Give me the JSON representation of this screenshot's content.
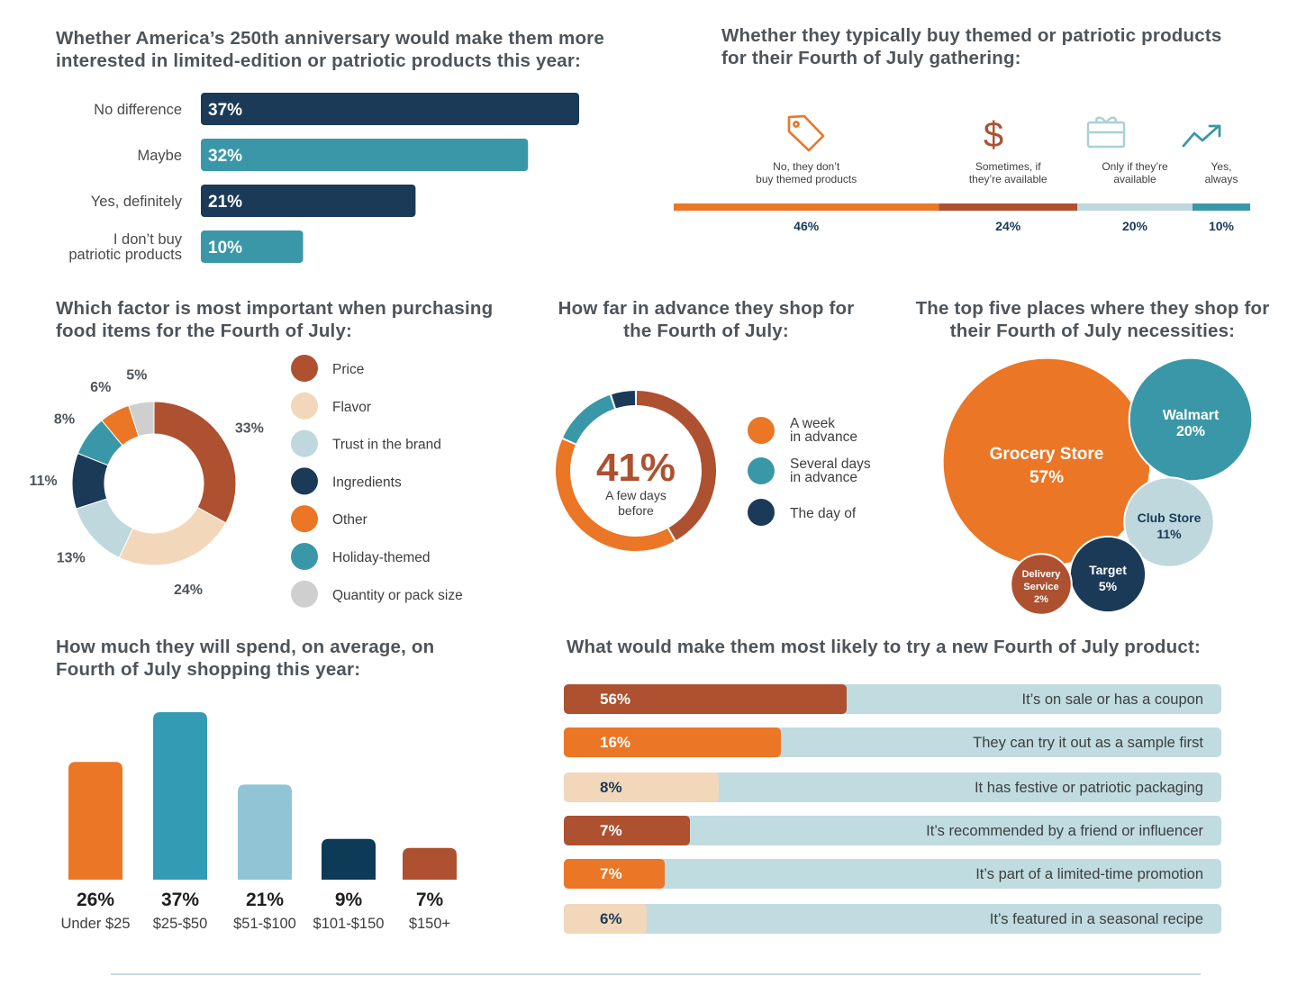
{
  "colors": {
    "navy": "#1a3a58",
    "teal": "#3a97a8",
    "orange": "#ea7626",
    "rust": "#ad5130",
    "peach": "#f2d7bb",
    "lightblue": "#bfd8dd",
    "gray": "#cfcfcf",
    "barteal": "#349bb4",
    "barlight": "#91c4d4",
    "barnavy": "#0c3a57",
    "track": "#c0dce0"
  },
  "titles": {
    "anniversary": "Whether America’s 250th anniversary would make them more interested in limited-edition or patriotic products this year:",
    "themed": "Whether they typically buy themed or patriotic products for their Fourth of July gathering:",
    "factor": "Which factor is most important when purchasing food items for the Fourth of July:",
    "advance": "How far in advance they shop for the Fourth of July:",
    "places": "The top five places where they shop for their Fourth of July necessities:",
    "spend": "How much they will spend, on average, on Fourth of July shopping this year:",
    "try_new": "What would make them most likely to try a new Fourth of July product:"
  },
  "chart_data": [
    {
      "id": "anniversary",
      "type": "bar",
      "orientation": "horizontal",
      "categories": [
        "No difference",
        "Maybe",
        "Yes, definitely",
        "I don’t buy patriotic products"
      ],
      "values": [
        37,
        32,
        21,
        10
      ],
      "labels": [
        "37%",
        "32%",
        "21%",
        "10%"
      ],
      "colors": [
        "#1a3a58",
        "#3a97a8",
        "#1a3a58",
        "#3a97a8"
      ],
      "xlim": [
        0,
        37
      ]
    },
    {
      "id": "themed",
      "type": "bar",
      "orientation": "stacked-horizontal",
      "categories": [
        "No, they don’t buy themed products",
        "Sometimes, if they’re available",
        "Only if they’re available",
        "Yes, always"
      ],
      "values": [
        46,
        24,
        20,
        10
      ],
      "labels": [
        "46%",
        "24%",
        "20%",
        "10%"
      ],
      "icons": [
        "tag-icon",
        "dollar-icon",
        "gift-card-icon",
        "trend-up-icon"
      ],
      "colors": [
        "#ea7626",
        "#ad5130",
        "#bfd8dd",
        "#3a97a8"
      ]
    },
    {
      "id": "factor",
      "type": "pie",
      "donut": true,
      "categories": [
        "Price",
        "Flavor",
        "Trust in the brand",
        "Ingredients",
        "Other",
        "Holiday-themed",
        "Quantity or pack size"
      ],
      "values": [
        33,
        24,
        13,
        11,
        6,
        8,
        5
      ],
      "labels": [
        "33%",
        "24%",
        "13%",
        "11%",
        "6%",
        "8%",
        "5%"
      ],
      "slice_order": [
        0,
        1,
        2,
        3,
        5,
        4,
        6
      ],
      "colors": [
        "#ad5130",
        "#f2d7bb",
        "#bfd8dd",
        "#1a3a58",
        "#ea7626",
        "#3a97a8",
        "#cfcfcf"
      ],
      "legend": "right"
    },
    {
      "id": "advance",
      "type": "pie",
      "donut": true,
      "center_value": "41%",
      "center_label": "A few days before",
      "legend_categories": [
        "A week in advance",
        "Several days in advance",
        "The day of"
      ],
      "legend_colors": [
        "#ea7626",
        "#3a97a8",
        "#1a3a58"
      ],
      "segments": [
        {
          "name": "A few days before",
          "value": 41,
          "color": "#ad5130"
        },
        {
          "name": "A week in advance",
          "value": 39,
          "color": "#ea7626"
        },
        {
          "name": "Several days in advance",
          "value": 13,
          "color": "#3a97a8"
        },
        {
          "name": "The day of",
          "value": 5,
          "color": "#1a3a58"
        }
      ],
      "legend": "right"
    },
    {
      "id": "places",
      "type": "scatter",
      "style": "bubble",
      "categories": [
        "Grocery Store",
        "Walmart",
        "Club Store",
        "Target",
        "Delivery Service"
      ],
      "values": [
        57,
        20,
        11,
        5,
        2
      ],
      "labels": [
        "57%",
        "20%",
        "11%",
        "5%",
        "2%"
      ],
      "colors": [
        "#ea7626",
        "#3a97a8",
        "#bfd8dd",
        "#1a3a58",
        "#ad5130"
      ]
    },
    {
      "id": "spend",
      "type": "bar",
      "orientation": "vertical",
      "categories": [
        "Under $25",
        "$25-$50",
        "$51-$100",
        "$101-$150",
        "$150+"
      ],
      "values": [
        26,
        37,
        21,
        9,
        7
      ],
      "labels": [
        "26%",
        "37%",
        "21%",
        "9%",
        "7%"
      ],
      "colors": [
        "#ea7626",
        "#349bb4",
        "#91c4d4",
        "#0c3a57",
        "#ad5130"
      ],
      "ylim": [
        0,
        37
      ]
    },
    {
      "id": "try_new",
      "type": "bar",
      "orientation": "horizontal",
      "categories": [
        "It’s on sale or has a coupon",
        "They can try it out as a sample first",
        "It has festive or patriotic packaging",
        "It’s recommended by a friend or influencer",
        "It’s part of a limited-time promotion",
        "It’s featured in a seasonal recipe"
      ],
      "values": [
        56,
        16,
        8,
        7,
        7,
        6
      ],
      "labels": [
        "56%",
        "16%",
        "8%",
        "7%",
        "7%",
        "6%"
      ],
      "colors": [
        "#ad5130",
        "#ea7626",
        "#f2d7bb",
        "#ad5130",
        "#ea7626",
        "#f2d7bb"
      ]
    }
  ]
}
